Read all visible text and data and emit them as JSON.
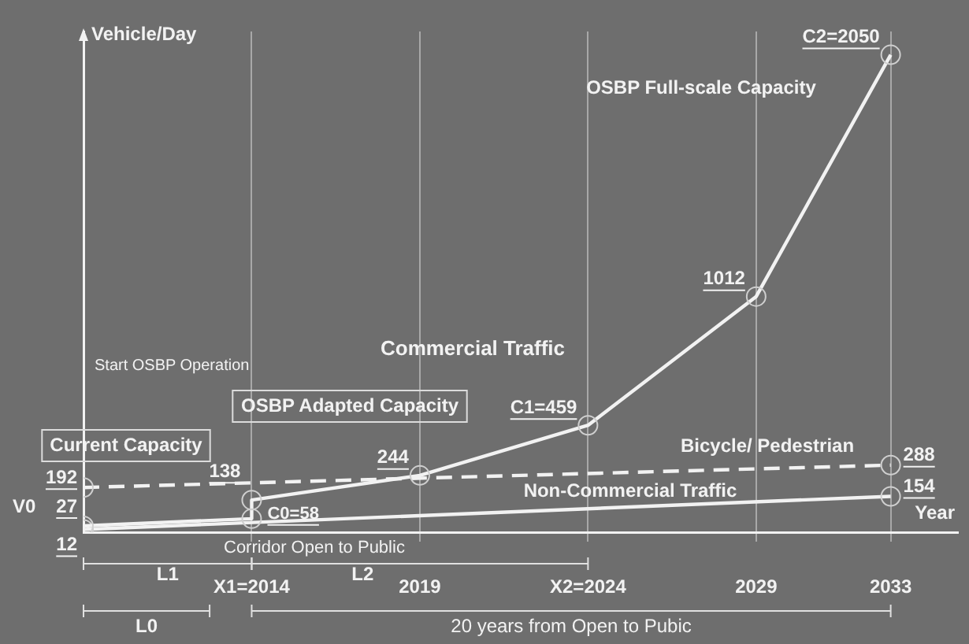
{
  "chart_data": {
    "type": "line",
    "xlabel": "Year",
    "ylabel": "Vehicle/Day",
    "xlim": [
      2009,
      2035
    ],
    "ylim": [
      0,
      2150
    ],
    "xticks": [
      {
        "value": 2014,
        "label": "X1=2014"
      },
      2019,
      {
        "value": 2024,
        "label": "X2=2024"
      },
      2029,
      2033
    ],
    "tick_labels": "x",
    "grid": "x",
    "legend": false,
    "marker": "circle",
    "series": [
      {
        "name": "Commercial Traffic",
        "color": "#f2f2f2",
        "x": [
          2009,
          2014,
          2014,
          2019,
          2024,
          2029,
          2033
        ],
        "values": [
          27,
          58,
          138,
          244,
          459,
          1012,
          2050
        ],
        "value_labels": [
          "27",
          "C0=58",
          "138",
          "244",
          "C1=459",
          "1012",
          "C2=2050"
        ]
      },
      {
        "name": "Bicycle/ Pedestrian",
        "color": "#f2f2f2",
        "line_style": "dashed",
        "x": [
          2009,
          2033
        ],
        "values": [
          192,
          288
        ],
        "value_labels": [
          "192",
          "288"
        ]
      },
      {
        "name": "Non-Commercial Traffic",
        "color": "#f2f2f2",
        "x": [
          2009,
          2033
        ],
        "values": [
          12,
          154
        ],
        "value_labels": [
          "12",
          "154"
        ]
      }
    ],
    "annotations": [
      "OSBP Full-scale Capacity",
      "OSBP Adapted Capacity",
      "Current Capacity",
      "Start OSBP Operation",
      "Corridor Open to Public",
      "V0",
      "L0",
      "L1",
      "L2",
      "20 years from Open to Pubic"
    ]
  }
}
